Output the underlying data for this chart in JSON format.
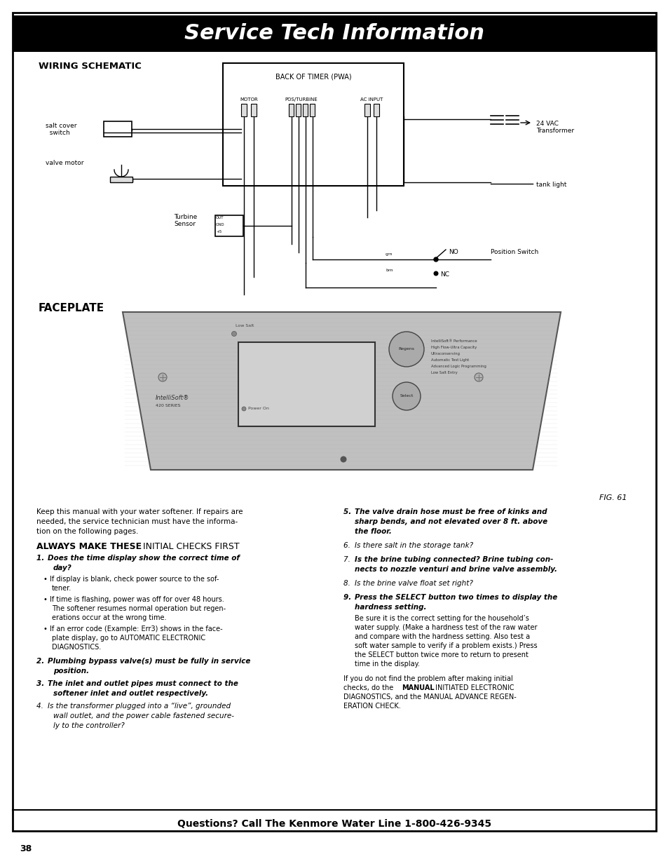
{
  "title": "Service Tech Information",
  "title_bg": "#000000",
  "title_color": "#ffffff",
  "title_fontsize": 22,
  "page_bg": "#ffffff",
  "border_color": "#000000",
  "section1_label": "WIRING SCHEMATIC",
  "faceplate_label": "FACEPLATE",
  "fig_label": "FIG. 61",
  "footer_text": "Questions? Call The Kenmore Water Line 1-800-426-9345",
  "page_number": "38",
  "intro_text_lines": [
    "Keep this manual with your water softener. If repairs are",
    "needed, the service technician must have the informa-",
    "tion on the following pages."
  ],
  "always_bold": "ALWAYS MAKE THESE ",
  "always_normal": "INITIAL CHECKS FIRST"
}
